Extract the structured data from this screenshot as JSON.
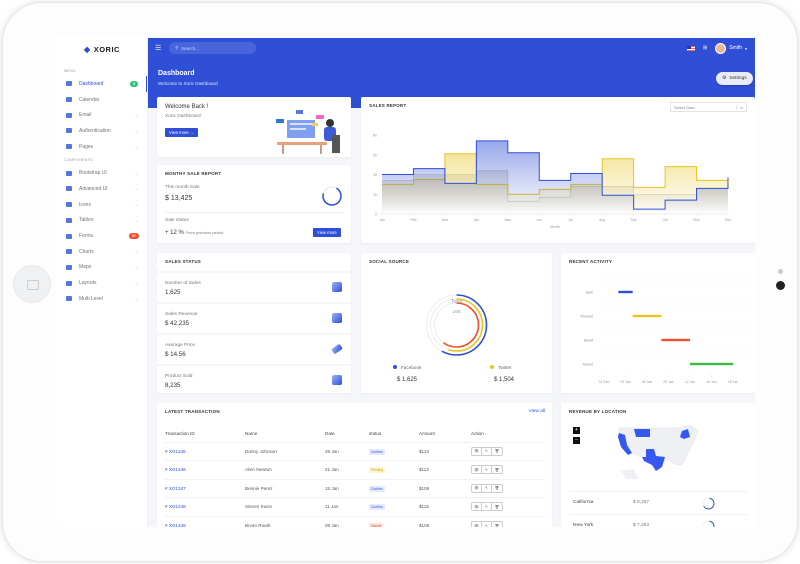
{
  "app": {
    "logo": "XORIC"
  },
  "sidebar": {
    "menu_label": "MENU",
    "components_label": "COMPONENTS",
    "menu": [
      {
        "label": "Dashboard",
        "badge": "3",
        "active": true
      },
      {
        "label": "Calendar"
      },
      {
        "label": "Email",
        "chevron": true
      },
      {
        "label": "Authentication",
        "chevron": true
      },
      {
        "label": "Pages",
        "chevron": true
      }
    ],
    "components": [
      {
        "label": "Bootstrap UI",
        "chevron": true
      },
      {
        "label": "Advanced UI",
        "chevron": true
      },
      {
        "label": "Icons",
        "chevron": true
      },
      {
        "label": "Tables",
        "chevron": true
      },
      {
        "label": "Forms",
        "badge": "07"
      },
      {
        "label": "Charts",
        "chevron": true
      },
      {
        "label": "Maps",
        "chevron": true
      },
      {
        "label": "Layouts",
        "chevron": true
      },
      {
        "label": "Multi Level",
        "chevron": true
      }
    ]
  },
  "topbar": {
    "search_placeholder": "Search...",
    "user": "Smith"
  },
  "header": {
    "title": "Dashboard",
    "subtitle": "Welcome to Xoric Dashboard",
    "settings": "Settings"
  },
  "welcome": {
    "title": "Welcome Back !",
    "subtitle": "Xoric Dashboard",
    "button": "View more →"
  },
  "monthly": {
    "title": "MONTHY SALE REPORT",
    "this_month_label": "This month Sale",
    "this_month_value": "$ 13,425",
    "status_label": "Sale status",
    "status_value": "+ 12 %",
    "status_note": "From previous period",
    "button": "View more"
  },
  "sales_report": {
    "title": "SALES REPORT",
    "date_placeholder": "Select Date"
  },
  "chart_data": {
    "type": "area",
    "step": true,
    "xlabel": "Month",
    "ylabel": "",
    "ylim": [
      0,
      80
    ],
    "yticks": [
      0,
      20,
      40,
      60,
      80
    ],
    "categories": [
      "Jan",
      "Feb",
      "Mar",
      "Apr",
      "May",
      "Jun",
      "Jul",
      "Aug",
      "Sep",
      "Oct",
      "Nov",
      "Dec"
    ],
    "series": [
      {
        "color": "#c9c3b5",
        "values": [
          34,
          40,
          40,
          44,
          13,
          17,
          28,
          28,
          20,
          20,
          26,
          30
        ]
      },
      {
        "color": "#e8c520",
        "values": [
          30,
          35,
          61,
          30,
          20,
          25,
          30,
          56,
          27,
          48,
          34,
          30
        ]
      },
      {
        "color": "#2f4fd6",
        "values": [
          40,
          46,
          31,
          74,
          62,
          34,
          41,
          19,
          5,
          14,
          26,
          37
        ]
      }
    ]
  },
  "sales_status": {
    "title": "SALES STATUS",
    "items": [
      {
        "label": "Number of Sales",
        "value": "1,625",
        "icon": "layers-icon"
      },
      {
        "label": "Sales Revenue",
        "value": "$ 42,235",
        "icon": "bar-chart-icon"
      },
      {
        "label": "Average Price",
        "value": "$ 14.56",
        "icon": "ticket-icon"
      },
      {
        "label": "Product Sold",
        "value": "8,235",
        "icon": "box-icon"
      }
    ]
  },
  "social": {
    "title": "SOCIAL SOURCE",
    "center_label": "Total",
    "center_value": "166",
    "rings": [
      {
        "color": "#2f4fd6",
        "fraction": 0.58
      },
      {
        "color": "#e8c520",
        "fraction": 0.55
      },
      {
        "color": "#f0502d",
        "fraction": 0.6
      }
    ],
    "legend": [
      {
        "name": "Facebook",
        "value": "$ 1,625",
        "color": "#2f4fd6"
      },
      {
        "name": "Twitter",
        "value": "$ 1,504",
        "color": "#e8c520"
      }
    ]
  },
  "activity": {
    "title": "RECENT ACTIVITY",
    "ticks": [
      "31 Dec",
      "03 Jan",
      "06 Jan",
      "09 Jan",
      "12 Jan",
      "15 Jan",
      "18 Jan"
    ],
    "rows": [
      {
        "name": "Jack",
        "start_day": 2,
        "end_day": 4,
        "color": "#2f4fd6"
      },
      {
        "name": "Thomas",
        "start_day": 4,
        "end_day": 8,
        "color": "#e8c520"
      },
      {
        "name": "David",
        "start_day": 8,
        "end_day": 12,
        "color": "#f0502d"
      },
      {
        "name": "James",
        "start_day": 12,
        "end_day": 18,
        "color": "#3cb84a"
      }
    ]
  },
  "transactions": {
    "title": "LATEST TRANSACTION",
    "view_all": "View all",
    "columns": [
      "Transaction ID",
      "Name",
      "Date",
      "status",
      "Amount",
      "Action"
    ],
    "rows": [
      {
        "id": "# XO1345",
        "name": "Danny Johnson",
        "date": "26 Jan",
        "status": "Confirm",
        "amount": "$124"
      },
      {
        "id": "# XO1346",
        "name": "Alvin Newton",
        "date": "21 Jan",
        "status": "Pending",
        "amount": "$112"
      },
      {
        "id": "# XO1347",
        "name": "Bennie Perez",
        "date": "15 Jan",
        "status": "Confirm",
        "amount": "$106"
      },
      {
        "id": "# XO1348",
        "name": "Steven Kwon",
        "date": "11 Jan",
        "status": "Confirm",
        "amount": "$115"
      },
      {
        "id": "# XO1349",
        "name": "Bryan Roark",
        "date": "08 Jan",
        "status": "Cancel",
        "amount": "$105"
      }
    ]
  },
  "revenue": {
    "title": "REVENUE BY LOCATION",
    "zoom_in": "+",
    "zoom_out": "−",
    "rows": [
      {
        "name": "California",
        "value": "$ 8,257"
      },
      {
        "name": "New York",
        "value": "$ 7,253"
      }
    ]
  }
}
